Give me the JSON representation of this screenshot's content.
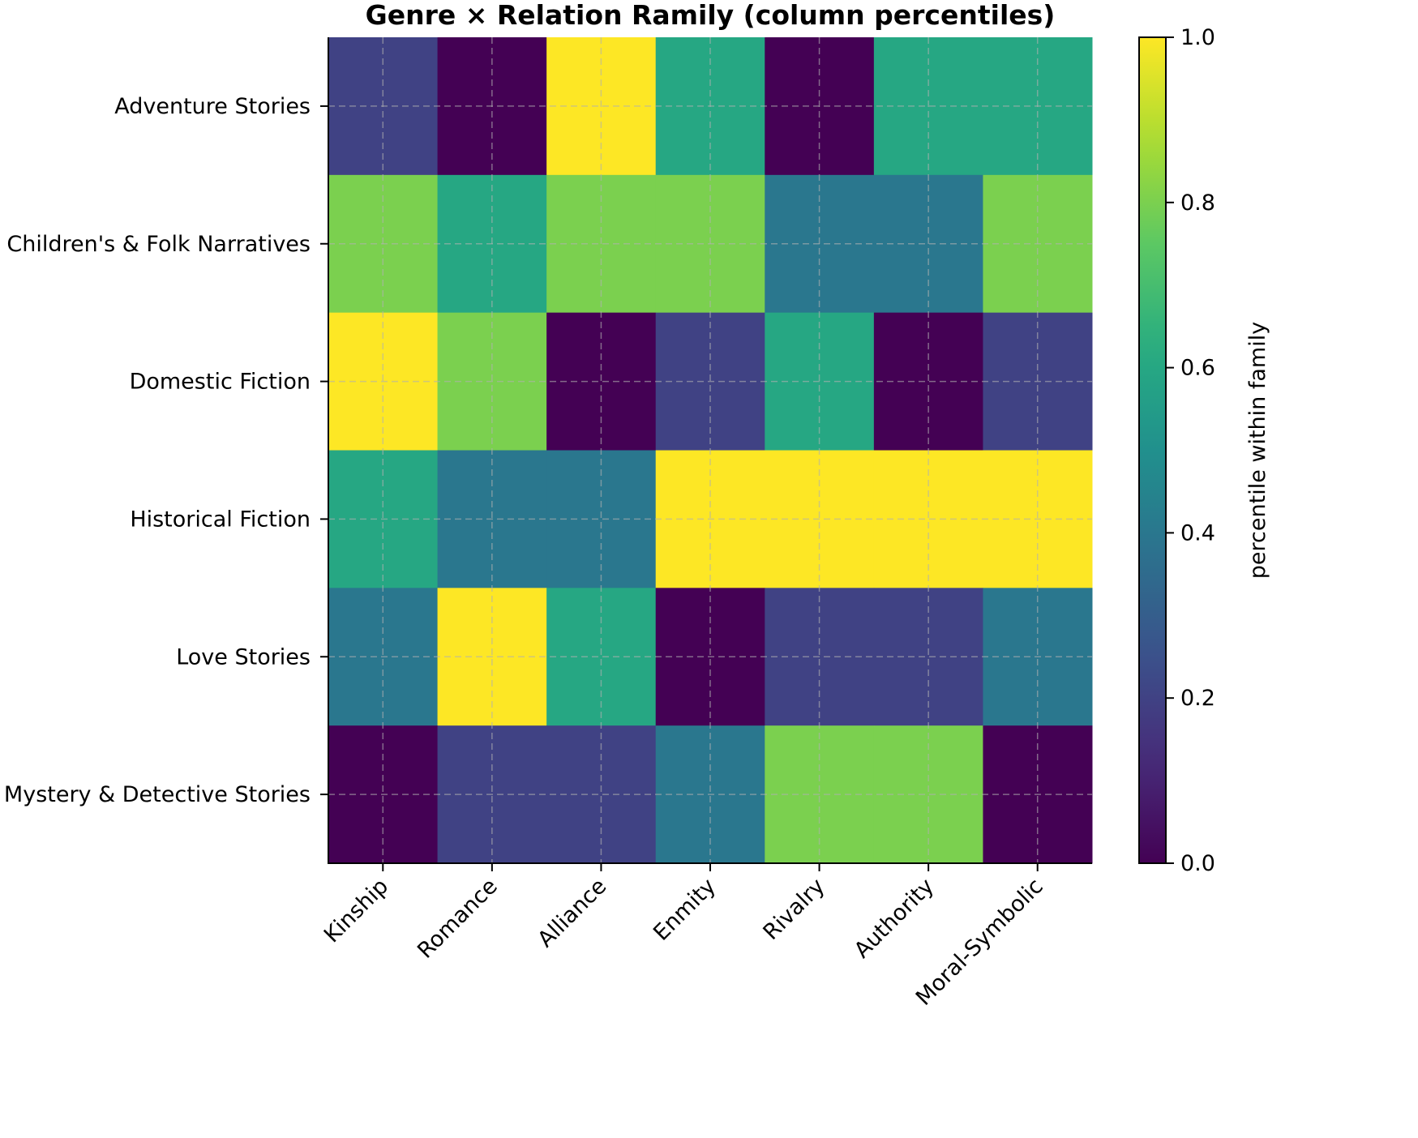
{
  "chart_data": {
    "type": "heatmap",
    "title": "Genre × Relation Ramily (column percentiles)",
    "xlabel": "",
    "ylabel": "",
    "columns": [
      "Kinship",
      "Romance",
      "Alliance",
      "Enmity",
      "Rivalry",
      "Authority",
      "Moral-Symbolic"
    ],
    "rows": [
      "Adventure Stories",
      "Children's & Folk Narratives",
      "Domestic Fiction",
      "Historical Fiction",
      "Love Stories",
      "Mystery & Detective Stories"
    ],
    "values": [
      [
        0.2,
        0.0,
        1.0,
        0.6,
        0.0,
        0.6,
        0.6
      ],
      [
        0.8,
        0.6,
        0.8,
        0.8,
        0.4,
        0.4,
        0.8
      ],
      [
        1.0,
        0.8,
        0.0,
        0.2,
        0.6,
        0.0,
        0.2
      ],
      [
        0.6,
        0.4,
        0.4,
        1.0,
        1.0,
        1.0,
        1.0
      ],
      [
        0.4,
        1.0,
        0.6,
        0.0,
        0.2,
        0.2,
        0.4
      ],
      [
        0.0,
        0.2,
        0.2,
        0.4,
        0.8,
        0.8,
        0.0
      ]
    ],
    "colormap": "viridis",
    "colorbar": {
      "label": "percentile within family",
      "range": [
        0.0,
        1.0
      ],
      "ticks": [
        "0.0",
        "0.2",
        "0.4",
        "0.6",
        "0.8",
        "1.0"
      ]
    },
    "grid": true
  }
}
